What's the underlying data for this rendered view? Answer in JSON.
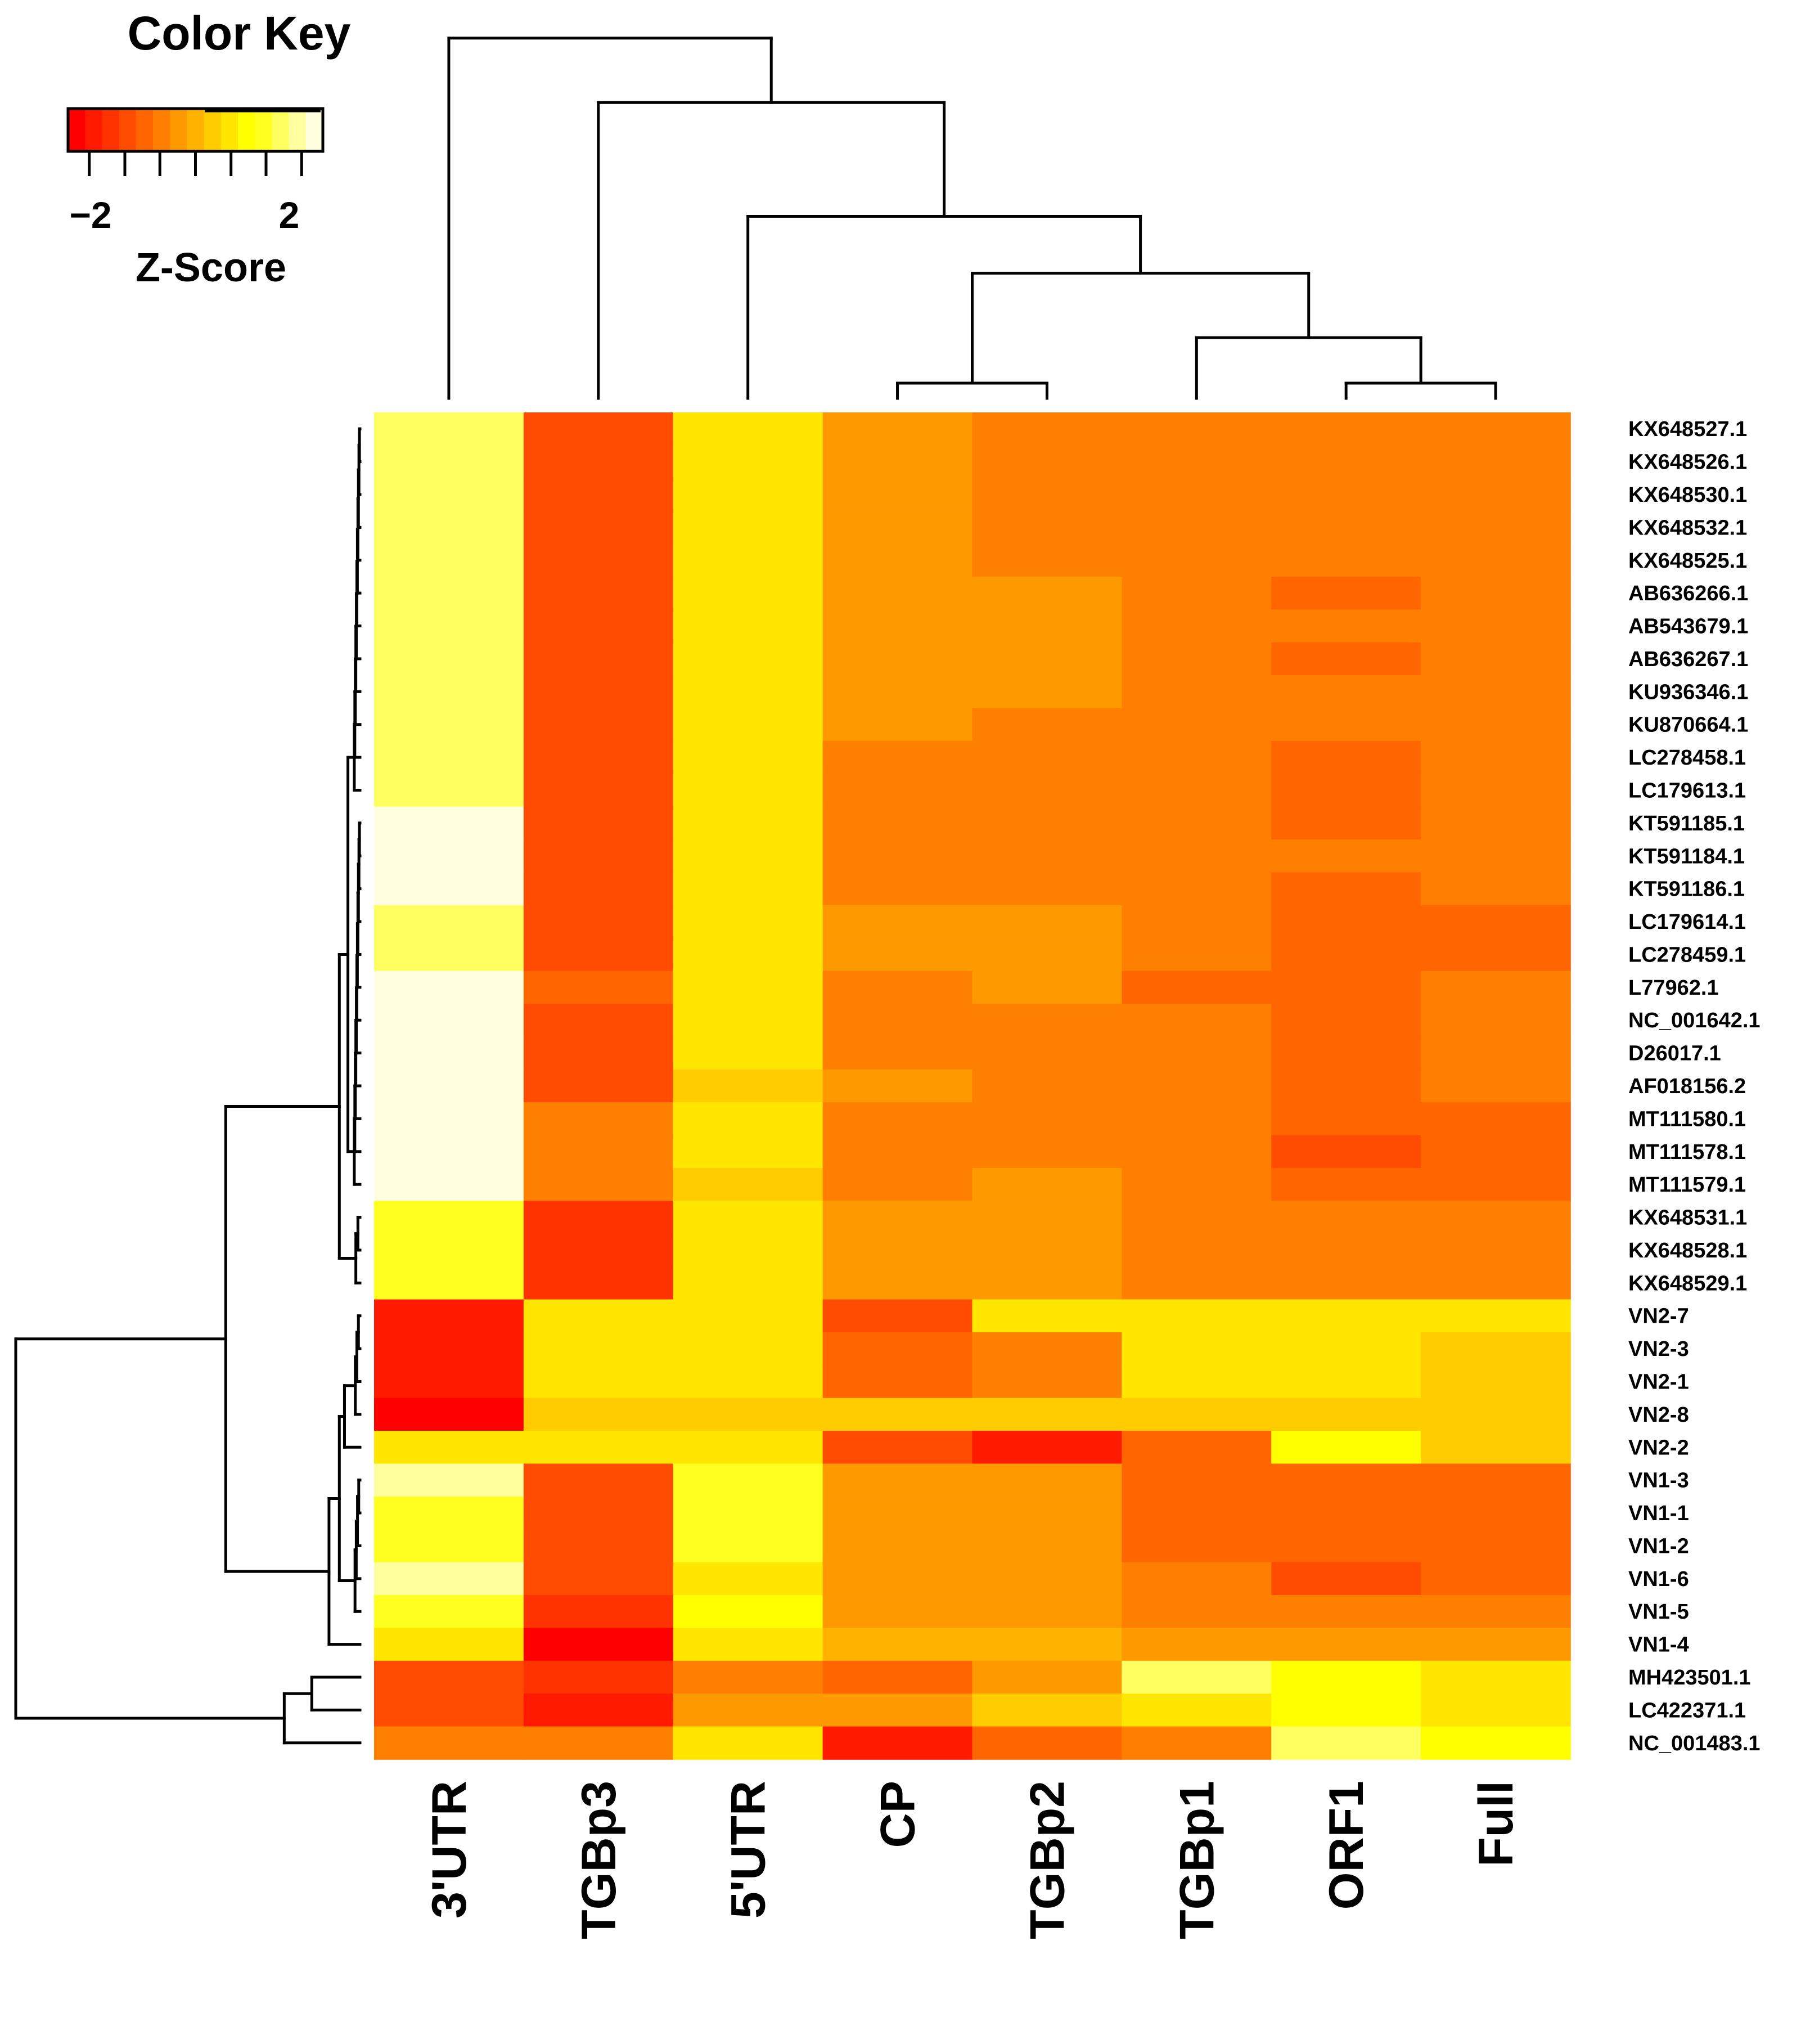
{
  "chart_data": {
    "type": "heatmap",
    "title": "",
    "columns": [
      "3'UTR",
      "TGBp3",
      "5'UTR",
      "CP",
      "TGBp2",
      "TGBp1",
      "ORF1",
      "Full"
    ],
    "rows": [
      "KX648527.1",
      "KX648526.1",
      "KX648530.1",
      "KX648532.1",
      "KX648525.1",
      "AB636266.1",
      "AB543679.1",
      "AB636267.1",
      "KU936346.1",
      "KU870664.1",
      "LC278458.1",
      "LC179613.1",
      "KT591185.1",
      "KT591184.1",
      "KT591186.1",
      "LC179614.1",
      "LC278459.1",
      "L77962.1",
      "NC_001642.1",
      "D26017.1",
      "AF018156.2",
      "MT111580.1",
      "MT111578.1",
      "MT111579.1",
      "KX648531.1",
      "KX648528.1",
      "KX648529.1",
      "VN2-7",
      "VN2-3",
      "VN2-1",
      "VN2-8",
      "VN2-2",
      "VN1-3",
      "VN1-1",
      "VN1-2",
      "VN1-6",
      "VN1-5",
      "VN1-4",
      "MH423501.1",
      "LC422371.1",
      "NC_001483.1"
    ],
    "values": [
      [
        1.5,
        -1.4,
        0.5,
        -0.3,
        -0.6,
        -0.6,
        -0.6,
        -0.6
      ],
      [
        1.5,
        -1.4,
        0.5,
        -0.3,
        -0.6,
        -0.6,
        -0.6,
        -0.6
      ],
      [
        1.5,
        -1.4,
        0.5,
        -0.3,
        -0.6,
        -0.6,
        -0.6,
        -0.6
      ],
      [
        1.5,
        -1.4,
        0.5,
        -0.3,
        -0.6,
        -0.6,
        -0.6,
        -0.6
      ],
      [
        1.5,
        -1.4,
        0.5,
        -0.3,
        -0.6,
        -0.6,
        -0.6,
        -0.6
      ],
      [
        1.5,
        -1.4,
        0.5,
        -0.3,
        -0.3,
        -0.6,
        -0.9,
        -0.6
      ],
      [
        1.5,
        -1.4,
        0.5,
        -0.3,
        -0.3,
        -0.6,
        -0.6,
        -0.6
      ],
      [
        1.5,
        -1.4,
        0.5,
        -0.3,
        -0.3,
        -0.6,
        -0.9,
        -0.6
      ],
      [
        1.5,
        -1.4,
        0.5,
        -0.3,
        -0.3,
        -0.6,
        -0.6,
        -0.6
      ],
      [
        1.5,
        -1.4,
        0.5,
        -0.3,
        -0.6,
        -0.6,
        -0.6,
        -0.6
      ],
      [
        1.5,
        -1.4,
        0.5,
        -0.6,
        -0.6,
        -0.6,
        -0.9,
        -0.6
      ],
      [
        1.5,
        -1.4,
        0.5,
        -0.6,
        -0.6,
        -0.6,
        -0.9,
        -0.6
      ],
      [
        2.1,
        -1.2,
        0.5,
        -0.6,
        -0.6,
        -0.6,
        -0.9,
        -0.6
      ],
      [
        2.1,
        -1.2,
        0.5,
        -0.6,
        -0.6,
        -0.6,
        -0.6,
        -0.6
      ],
      [
        2.1,
        -1.2,
        0.5,
        -0.6,
        -0.6,
        -0.6,
        -0.9,
        -0.6
      ],
      [
        1.5,
        -1.2,
        0.5,
        -0.3,
        -0.3,
        -0.6,
        -0.9,
        -0.9
      ],
      [
        1.5,
        -1.2,
        0.5,
        -0.3,
        -0.3,
        -0.6,
        -0.9,
        -0.9
      ],
      [
        2.1,
        -0.9,
        0.5,
        -0.6,
        -0.3,
        -0.9,
        -0.9,
        -0.6
      ],
      [
        2.1,
        -1.2,
        0.5,
        -0.6,
        -0.6,
        -0.6,
        -0.9,
        -0.6
      ],
      [
        2.1,
        -1.2,
        0.5,
        -0.6,
        -0.6,
        -0.6,
        -0.9,
        -0.6
      ],
      [
        2.1,
        -1.2,
        0.2,
        -0.3,
        -0.6,
        -0.6,
        -0.9,
        -0.6
      ],
      [
        2.1,
        -0.6,
        0.5,
        -0.6,
        -0.6,
        -0.6,
        -0.9,
        -0.9
      ],
      [
        2.1,
        -0.6,
        0.5,
        -0.6,
        -0.6,
        -0.6,
        -1.2,
        -0.9
      ],
      [
        2.1,
        -0.6,
        0.2,
        -0.6,
        -0.3,
        -0.6,
        -0.9,
        -0.9
      ],
      [
        1.2,
        -1.5,
        0.5,
        -0.3,
        -0.3,
        -0.6,
        -0.6,
        -0.6
      ],
      [
        1.2,
        -1.5,
        0.5,
        -0.3,
        -0.3,
        -0.6,
        -0.6,
        -0.6
      ],
      [
        1.2,
        -1.5,
        0.5,
        -0.3,
        -0.3,
        -0.6,
        -0.6,
        -0.6
      ],
      [
        -1.9,
        0.5,
        0.5,
        -1.2,
        0.5,
        0.5,
        0.5,
        0.5
      ],
      [
        -1.9,
        0.5,
        0.5,
        -0.9,
        -0.6,
        0.5,
        0.5,
        0.2
      ],
      [
        -1.9,
        0.5,
        0.5,
        -0.9,
        -0.6,
        0.5,
        0.5,
        0.2
      ],
      [
        -2.1,
        0.2,
        0.2,
        0.2,
        0.2,
        0.2,
        0.2,
        0.2
      ],
      [
        0.5,
        0.5,
        0.5,
        -1.2,
        -1.9,
        -0.9,
        0.8,
        0.2
      ],
      [
        1.8,
        -1.2,
        1.2,
        -0.3,
        -0.3,
        -0.9,
        -0.9,
        -0.9
      ],
      [
        1.2,
        -1.2,
        1.2,
        -0.3,
        -0.3,
        -0.9,
        -0.9,
        -0.9
      ],
      [
        1.2,
        -1.2,
        1.2,
        -0.3,
        -0.3,
        -0.9,
        -0.9,
        -0.9
      ],
      [
        1.8,
        -1.2,
        0.5,
        -0.3,
        -0.3,
        -0.6,
        -1.2,
        -0.9
      ],
      [
        1.2,
        -1.5,
        0.8,
        -0.3,
        -0.3,
        -0.6,
        -0.6,
        -0.6
      ],
      [
        0.5,
        -2.1,
        0.5,
        -0.1,
        -0.1,
        -0.3,
        -0.3,
        -0.3
      ],
      [
        -1.2,
        -1.5,
        -0.6,
        -0.9,
        -0.3,
        1.5,
        1.0,
        0.5
      ],
      [
        -1.2,
        -1.8,
        -0.3,
        -0.3,
        0.2,
        0.5,
        1.0,
        0.5
      ],
      [
        -0.6,
        -0.6,
        0.5,
        -1.8,
        -0.9,
        -0.6,
        1.5,
        0.8
      ]
    ],
    "color_key": {
      "title": "Color Key",
      "xlabel": "Z-Score",
      "range": [
        -2.4,
        2.4
      ],
      "tick_values": [
        -2,
        -1.33,
        -0.67,
        0,
        0.67,
        1.33,
        2
      ],
      "tick_labels": [
        "−2",
        "2"
      ],
      "colors": [
        "#ff0000",
        "#ff1a00",
        "#ff3300",
        "#ff4c00",
        "#ff6600",
        "#ff8000",
        "#ff9900",
        "#ffb300",
        "#ffcc00",
        "#ffe600",
        "#ffff00",
        "#ffff20",
        "#ffff60",
        "#ffffa0",
        "#ffffe0"
      ],
      "histogram_level": 0.94
    },
    "column_dendrogram": {
      "leaf_order": [
        "3'UTR",
        "TGBp3",
        "5'UTR",
        "CP",
        "TGBp2",
        "TGBp1",
        "ORF1",
        "Full"
      ],
      "merge_heights": [
        0.95,
        0.78,
        0.48,
        0.33,
        0.16,
        0.04,
        0.0
      ]
    },
    "row_dendrogram": {
      "top_split_groups": [
        "KX648527.1 – VN1-4",
        "MH423501.1 – NC_001483.1"
      ],
      "merge_heights_relative": [
        1.0,
        0.39,
        0.22,
        0.18,
        0.02
      ]
    }
  }
}
